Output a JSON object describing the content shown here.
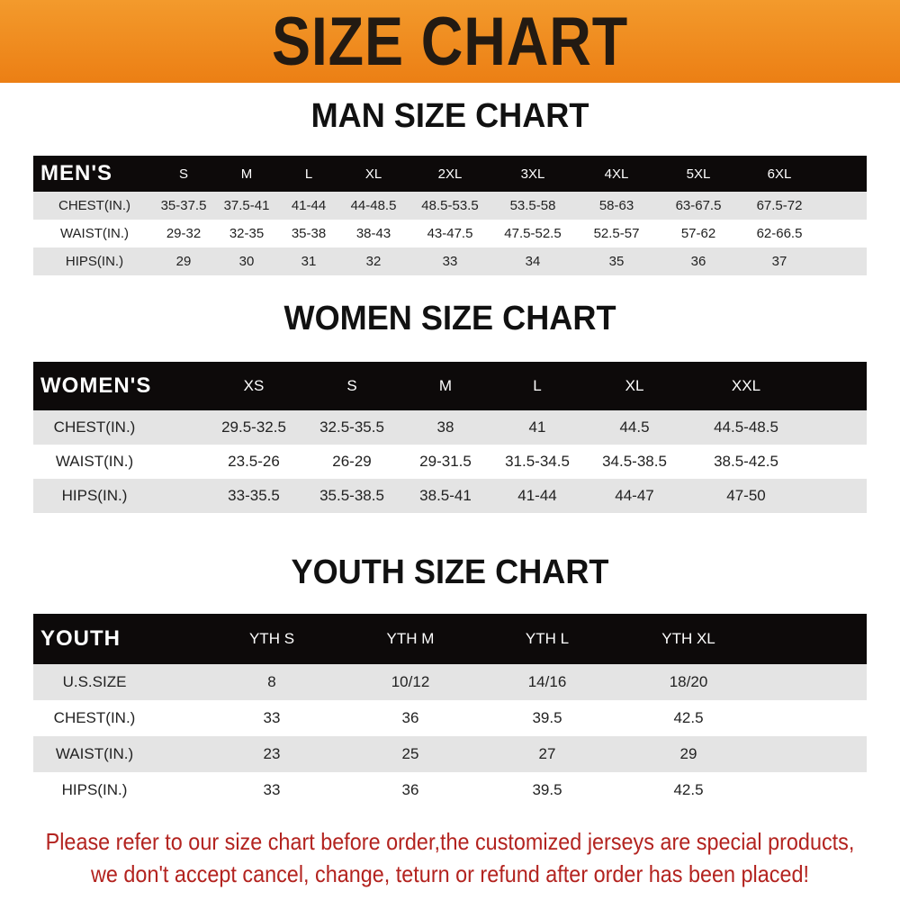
{
  "banner": {
    "title": "SIZE CHART"
  },
  "colors": {
    "banner": "#ef8a1f",
    "header_row": "#0d0a0a",
    "stripe": "#e4e4e4",
    "footer_text": "#b3231f"
  },
  "men": {
    "title": "MAN SIZE CHART",
    "header": [
      "MEN'S",
      "S",
      "M",
      "L",
      "XL",
      "2XL",
      "3XL",
      "4XL",
      "5XL",
      "6XL"
    ],
    "rows": [
      [
        "CHEST(IN.)",
        "35-37.5",
        "37.5-41",
        "41-44",
        "44-48.5",
        "48.5-53.5",
        "53.5-58",
        "58-63",
        "63-67.5",
        "67.5-72"
      ],
      [
        "WAIST(IN.)",
        "29-32",
        "32-35",
        "35-38",
        "38-43",
        "43-47.5",
        "47.5-52.5",
        "52.5-57",
        "57-62",
        "62-66.5"
      ],
      [
        "HIPS(IN.)",
        "29",
        "30",
        "31",
        "32",
        "33",
        "34",
        "35",
        "36",
        "37"
      ]
    ]
  },
  "women": {
    "title": "WOMEN SIZE CHART",
    "header": [
      "WOMEN'S",
      "XS",
      "S",
      "M",
      "L",
      "XL",
      "XXL"
    ],
    "rows": [
      [
        "CHEST(IN.)",
        "29.5-32.5",
        "32.5-35.5",
        "38",
        "41",
        "44.5",
        "44.5-48.5"
      ],
      [
        "WAIST(IN.)",
        "23.5-26",
        "26-29",
        "29-31.5",
        "31.5-34.5",
        "34.5-38.5",
        "38.5-42.5"
      ],
      [
        "HIPS(IN.)",
        "33-35.5",
        "35.5-38.5",
        "38.5-41",
        "41-44",
        "44-47",
        "47-50"
      ]
    ]
  },
  "youth": {
    "title": "YOUTH SIZE CHART",
    "header": [
      "YOUTH",
      "YTH S",
      "YTH M",
      "YTH L",
      "YTH XL"
    ],
    "rows": [
      [
        "U.S.SIZE",
        "8",
        "10/12",
        "14/16",
        "18/20"
      ],
      [
        "CHEST(IN.)",
        "33",
        "36",
        "39.5",
        "42.5"
      ],
      [
        "WAIST(IN.)",
        "23",
        "25",
        "27",
        "29"
      ],
      [
        "HIPS(IN.)",
        "33",
        "36",
        "39.5",
        "42.5"
      ]
    ]
  },
  "footer": {
    "line1": "Please refer to our size chart before order,the customized jerseys are special products,",
    "line2": "we don't accept cancel, change, teturn or refund after order has been placed!"
  }
}
